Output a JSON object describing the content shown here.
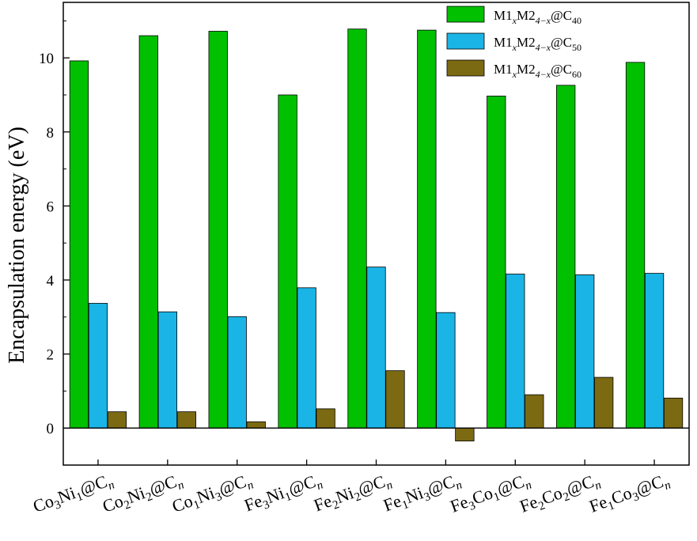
{
  "chart_data": {
    "type": "bar",
    "title": "",
    "ylabel": "Encapsulation energy (eV)",
    "xlabel": "",
    "ylim": [
      -1,
      11.5
    ],
    "yticks": [
      0,
      2,
      4,
      6,
      8,
      10
    ],
    "grid": false,
    "legend_position": "top-right",
    "categories": [
      {
        "parts": [
          [
            "Co",
            ""
          ],
          [
            "3",
            "sub"
          ],
          [
            "Ni",
            ""
          ],
          [
            "1",
            "sub"
          ],
          [
            "@C",
            ""
          ],
          [
            "n",
            "subi"
          ]
        ]
      },
      {
        "parts": [
          [
            "Co",
            ""
          ],
          [
            "2",
            "sub"
          ],
          [
            "Ni",
            ""
          ],
          [
            "2",
            "sub"
          ],
          [
            "@C",
            ""
          ],
          [
            "n",
            "subi"
          ]
        ]
      },
      {
        "parts": [
          [
            "Co",
            ""
          ],
          [
            "1",
            "sub"
          ],
          [
            "Ni",
            ""
          ],
          [
            "3",
            "sub"
          ],
          [
            "@C",
            ""
          ],
          [
            "n",
            "subi"
          ]
        ]
      },
      {
        "parts": [
          [
            "Fe",
            ""
          ],
          [
            "3",
            "sub"
          ],
          [
            "Ni",
            ""
          ],
          [
            "1",
            "sub"
          ],
          [
            "@C",
            ""
          ],
          [
            "n",
            "subi"
          ]
        ]
      },
      {
        "parts": [
          [
            "Fe",
            ""
          ],
          [
            "2",
            "sub"
          ],
          [
            "Ni",
            ""
          ],
          [
            "2",
            "sub"
          ],
          [
            "@C",
            ""
          ],
          [
            "n",
            "subi"
          ]
        ]
      },
      {
        "parts": [
          [
            "Fe",
            ""
          ],
          [
            "1",
            "sub"
          ],
          [
            "Ni",
            ""
          ],
          [
            "3",
            "sub"
          ],
          [
            "@C",
            ""
          ],
          [
            "n",
            "subi"
          ]
        ]
      },
      {
        "parts": [
          [
            "Fe",
            ""
          ],
          [
            "3",
            "sub"
          ],
          [
            "Co",
            ""
          ],
          [
            "1",
            "sub"
          ],
          [
            "@C",
            ""
          ],
          [
            "n",
            "subi"
          ]
        ]
      },
      {
        "parts": [
          [
            "Fe",
            ""
          ],
          [
            "2",
            "sub"
          ],
          [
            "Co",
            ""
          ],
          [
            "2",
            "sub"
          ],
          [
            "@C",
            ""
          ],
          [
            "n",
            "subi"
          ]
        ]
      },
      {
        "parts": [
          [
            "Fe",
            ""
          ],
          [
            "1",
            "sub"
          ],
          [
            "Co",
            ""
          ],
          [
            "3",
            "sub"
          ],
          [
            "@C",
            ""
          ],
          [
            "n",
            "subi"
          ]
        ]
      }
    ],
    "series": [
      {
        "name_parts": [
          [
            "M1",
            ""
          ],
          [
            "x",
            "subi"
          ],
          [
            "M2",
            ""
          ],
          [
            "4−x",
            "subi"
          ],
          [
            "@C",
            ""
          ],
          [
            "40",
            "sub"
          ]
        ],
        "color": "#00c000",
        "values": [
          9.92,
          10.6,
          10.72,
          9.0,
          10.78,
          10.75,
          8.97,
          9.26,
          9.88
        ]
      },
      {
        "name_parts": [
          [
            "M1",
            ""
          ],
          [
            "x",
            "subi"
          ],
          [
            "M2",
            ""
          ],
          [
            "4−x",
            "subi"
          ],
          [
            "@C",
            ""
          ],
          [
            "50",
            "sub"
          ]
        ],
        "color": "#1ab4e6",
        "values": [
          3.37,
          3.14,
          3.01,
          3.79,
          4.35,
          3.12,
          4.16,
          4.14,
          4.18
        ]
      },
      {
        "name_parts": [
          [
            "M1",
            ""
          ],
          [
            "x",
            "subi"
          ],
          [
            "M2",
            ""
          ],
          [
            "4−x",
            "subi"
          ],
          [
            "@C",
            ""
          ],
          [
            "60",
            "sub"
          ]
        ],
        "color": "#7b6a12",
        "values": [
          0.44,
          0.44,
          0.17,
          0.52,
          1.55,
          -0.35,
          0.9,
          1.37,
          0.81
        ]
      }
    ]
  }
}
